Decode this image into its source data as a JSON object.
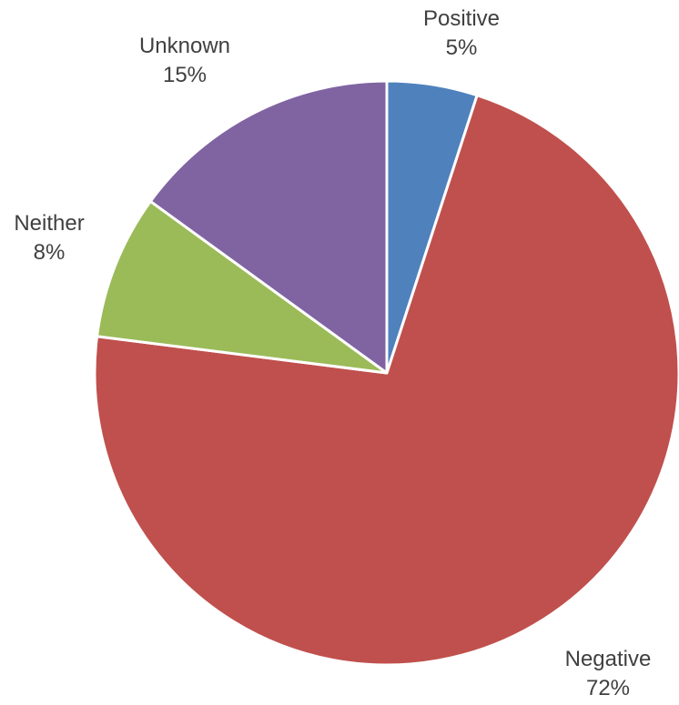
{
  "chart_data": {
    "type": "pie",
    "categories": [
      "Positive",
      "Negative",
      "Neither",
      "Unknown"
    ],
    "values": [
      5,
      72,
      8,
      15
    ],
    "labels": [
      "5%",
      "72%",
      "8%",
      "15%"
    ],
    "colors": [
      "#4F81BD",
      "#C0504D",
      "#9BBB59",
      "#8064A2"
    ],
    "start_angle": "12 o'clock",
    "direction": "clockwise",
    "legend": "none",
    "title": ""
  }
}
